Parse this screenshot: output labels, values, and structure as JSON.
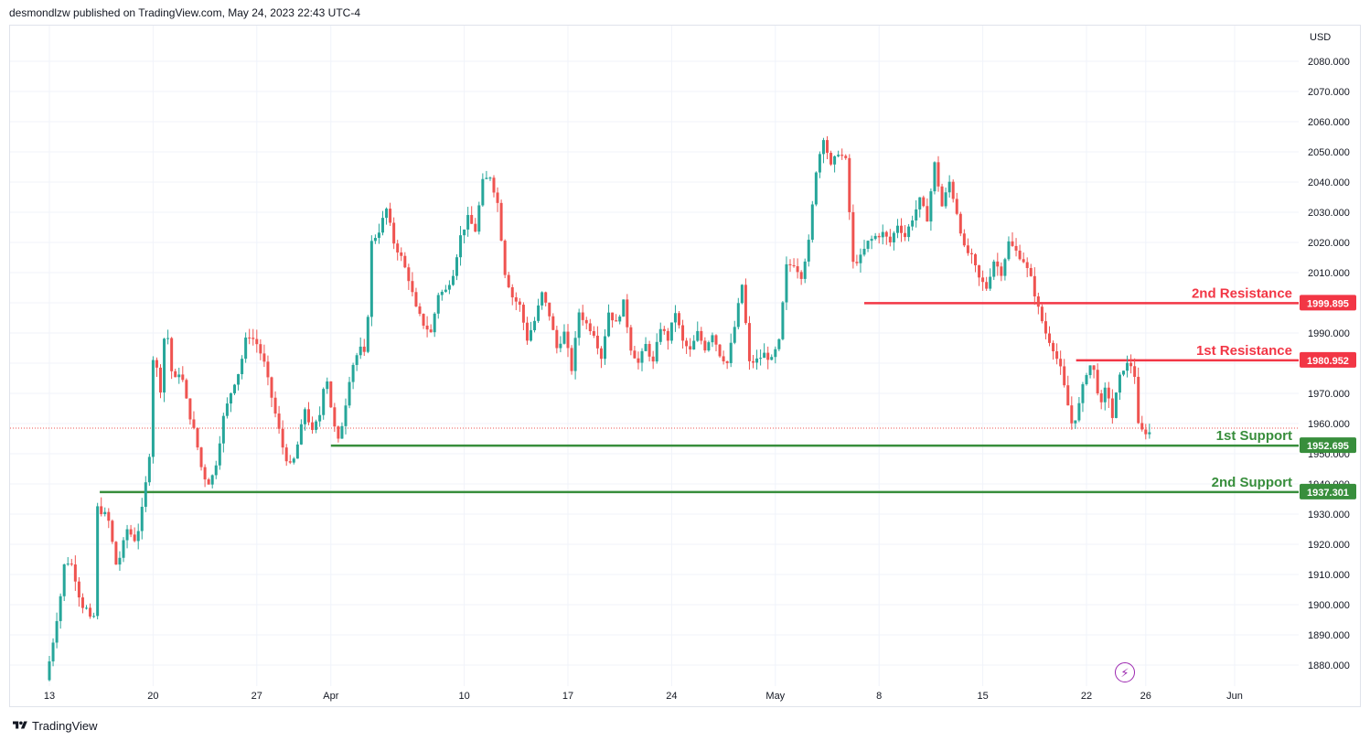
{
  "header": {
    "text": "desmondlzw published on TradingView.com, May 24, 2023 22:43 UTC-4"
  },
  "footer": {
    "brand": "TradingView"
  },
  "icons": {
    "logo": "tradingview-logo-icon",
    "alert": "lightning-bolt-icon"
  },
  "colors": {
    "up": "#26a69a",
    "down": "#ef5350",
    "resistance": "#f23645",
    "support": "#388e3c",
    "grid": "#f0f3fa",
    "text": "#131722",
    "alert": "#9c27b0"
  },
  "chart_data": {
    "type": "candlestick",
    "currency": "USD",
    "ylim": [
      1875,
      2088
    ],
    "y_ticks": [
      "1880.000",
      "1890.000",
      "1900.000",
      "1910.000",
      "1920.000",
      "1930.000",
      "1940.000",
      "1950.000",
      "1960.000",
      "1970.000",
      "1980.000",
      "1990.000",
      "2000.000",
      "2010.000",
      "2020.000",
      "2030.000",
      "2040.000",
      "2050.000",
      "2060.000",
      "2070.000",
      "2080.000"
    ],
    "x_ticks": [
      {
        "label": "13",
        "day": 0
      },
      {
        "label": "20",
        "day": 7
      },
      {
        "label": "27",
        "day": 14
      },
      {
        "label": "Apr",
        "day": 19
      },
      {
        "label": "10",
        "day": 28
      },
      {
        "label": "17",
        "day": 35
      },
      {
        "label": "24",
        "day": 42
      },
      {
        "label": "May",
        "day": 49
      },
      {
        "label": "8",
        "day": 56
      },
      {
        "label": "15",
        "day": 63
      },
      {
        "label": "22",
        "day": 70
      },
      {
        "label": "26",
        "day": 74
      },
      {
        "label": "Jun",
        "day": 80
      }
    ],
    "levels": [
      {
        "name": "2nd Resistance",
        "value": 1999.895,
        "label": "1999.895",
        "kind": "resistance",
        "from_day": 55.0
      },
      {
        "name": "1st Resistance",
        "value": 1980.952,
        "label": "1980.952",
        "kind": "resistance",
        "from_day": 69.3
      },
      {
        "name": "1st Support",
        "value": 1952.695,
        "label": "1952.695",
        "kind": "support",
        "from_day": 19.0
      },
      {
        "name": "2nd Support",
        "value": 1937.301,
        "label": "1937.301",
        "kind": "support",
        "from_day": 3.4
      }
    ],
    "current_price": 1958.5,
    "path": [
      [
        0,
        1875
      ],
      [
        0.4,
        1885
      ],
      [
        1,
        1903
      ],
      [
        1.3,
        1915
      ],
      [
        1.8,
        1913
      ],
      [
        2.4,
        1900
      ],
      [
        2.9,
        1898
      ],
      [
        3.2,
        1889
      ],
      [
        3.5,
        1932
      ],
      [
        4.2,
        1929
      ],
      [
        4.8,
        1912
      ],
      [
        5.5,
        1925
      ],
      [
        6.1,
        1921
      ],
      [
        6.6,
        1934
      ],
      [
        7.0,
        1950
      ],
      [
        7.3,
        1988
      ],
      [
        7.7,
        1968
      ],
      [
        8.1,
        1995
      ],
      [
        8.6,
        1973
      ],
      [
        9.1,
        1978
      ],
      [
        9.6,
        1965
      ],
      [
        10.1,
        1956
      ],
      [
        10.6,
        1943
      ],
      [
        11.1,
        1940
      ],
      [
        11.5,
        1947
      ],
      [
        12,
        1962
      ],
      [
        12.6,
        1972
      ],
      [
        13.1,
        1978
      ],
      [
        13.6,
        1990
      ],
      [
        14.2,
        1987
      ],
      [
        14.7,
        1981
      ],
      [
        15.1,
        1972
      ],
      [
        15.6,
        1961
      ],
      [
        16.1,
        1950
      ],
      [
        16.6,
        1945
      ],
      [
        17.1,
        1955
      ],
      [
        17.5,
        1965
      ],
      [
        18,
        1957
      ],
      [
        18.5,
        1963
      ],
      [
        18.9,
        1978
      ],
      [
        19.3,
        1964
      ],
      [
        19.7,
        1953
      ],
      [
        20.1,
        1962
      ],
      [
        20.6,
        1978
      ],
      [
        21.2,
        1985
      ],
      [
        21.6,
        1982
      ],
      [
        22,
        2020
      ],
      [
        22.5,
        2024
      ],
      [
        23,
        2031
      ],
      [
        23.5,
        2020
      ],
      [
        24,
        2015
      ],
      [
        24.5,
        2008
      ],
      [
        25,
        1998
      ],
      [
        25.5,
        1993
      ],
      [
        26,
        1990
      ],
      [
        26.5,
        2003
      ],
      [
        27,
        2004
      ],
      [
        27.5,
        2010
      ],
      [
        28,
        2022
      ],
      [
        28.5,
        2028
      ],
      [
        29,
        2024
      ],
      [
        29.5,
        2040
      ],
      [
        30,
        2042
      ],
      [
        30.5,
        2033
      ],
      [
        31,
        2010
      ],
      [
        31.5,
        2002
      ],
      [
        32,
        1999
      ],
      [
        32.5,
        1988
      ],
      [
        33,
        1994
      ],
      [
        33.5,
        2003
      ],
      [
        34,
        1996
      ],
      [
        34.5,
        1985
      ],
      [
        35,
        1990
      ],
      [
        35.5,
        1978
      ],
      [
        36,
        1997
      ],
      [
        36.5,
        1993
      ],
      [
        37,
        1990
      ],
      [
        37.5,
        1982
      ],
      [
        38,
        1997
      ],
      [
        38.5,
        1993
      ],
      [
        39,
        2000
      ],
      [
        39.5,
        1985
      ],
      [
        40,
        1980
      ],
      [
        40.5,
        1986
      ],
      [
        41,
        1980
      ],
      [
        41.5,
        1992
      ],
      [
        42,
        1988
      ],
      [
        42.5,
        1997
      ],
      [
        43,
        1987
      ],
      [
        43.5,
        1984
      ],
      [
        44,
        1990
      ],
      [
        44.5,
        1985
      ],
      [
        45,
        1990
      ],
      [
        45.5,
        1983
      ],
      [
        46,
        1980
      ],
      [
        46.5,
        1992
      ],
      [
        47,
        2006
      ],
      [
        47.5,
        1980
      ],
      [
        48,
        1981
      ],
      [
        48.5,
        1983
      ],
      [
        49,
        1981
      ],
      [
        49.5,
        1987
      ],
      [
        50,
        2012
      ],
      [
        50.5,
        2013
      ],
      [
        51,
        2009
      ],
      [
        51.5,
        2020
      ],
      [
        52,
        2044
      ],
      [
        52.5,
        2055
      ],
      [
        53,
        2045
      ],
      [
        53.5,
        2050
      ],
      [
        54,
        2047
      ],
      [
        54.5,
        2013
      ],
      [
        55,
        2015
      ],
      [
        55.5,
        2020
      ],
      [
        56,
        2022
      ],
      [
        56.5,
        2023
      ],
      [
        57,
        2020
      ],
      [
        57.5,
        2026
      ],
      [
        58,
        2022
      ],
      [
        58.5,
        2028
      ],
      [
        59,
        2034
      ],
      [
        59.5,
        2028
      ],
      [
        60,
        2046
      ],
      [
        60.5,
        2032
      ],
      [
        61,
        2040
      ],
      [
        61.5,
        2030
      ],
      [
        62,
        2018
      ],
      [
        62.5,
        2015
      ],
      [
        63,
        2008
      ],
      [
        63.5,
        2005
      ],
      [
        64,
        2014
      ],
      [
        64.5,
        2010
      ],
      [
        65,
        2020
      ],
      [
        65.5,
        2017
      ],
      [
        66,
        2014
      ],
      [
        66.5,
        2008
      ],
      [
        67,
        1998
      ],
      [
        67.5,
        1990
      ],
      [
        68,
        1985
      ],
      [
        68.5,
        1978
      ],
      [
        69,
        1966
      ],
      [
        69.3,
        1959
      ],
      [
        69.7,
        1965
      ],
      [
        70,
        1972
      ],
      [
        70.4,
        1980
      ],
      [
        70.8,
        1977
      ],
      [
        71.2,
        1965
      ],
      [
        71.6,
        1973
      ],
      [
        72,
        1962
      ],
      [
        72.4,
        1974
      ],
      [
        72.8,
        1979
      ],
      [
        73.2,
        1980
      ],
      [
        73.5,
        1976
      ],
      [
        73.7,
        1960
      ],
      [
        73.9,
        1957
      ],
      [
        74.1,
        1958
      ],
      [
        74.3,
        1957
      ]
    ]
  }
}
